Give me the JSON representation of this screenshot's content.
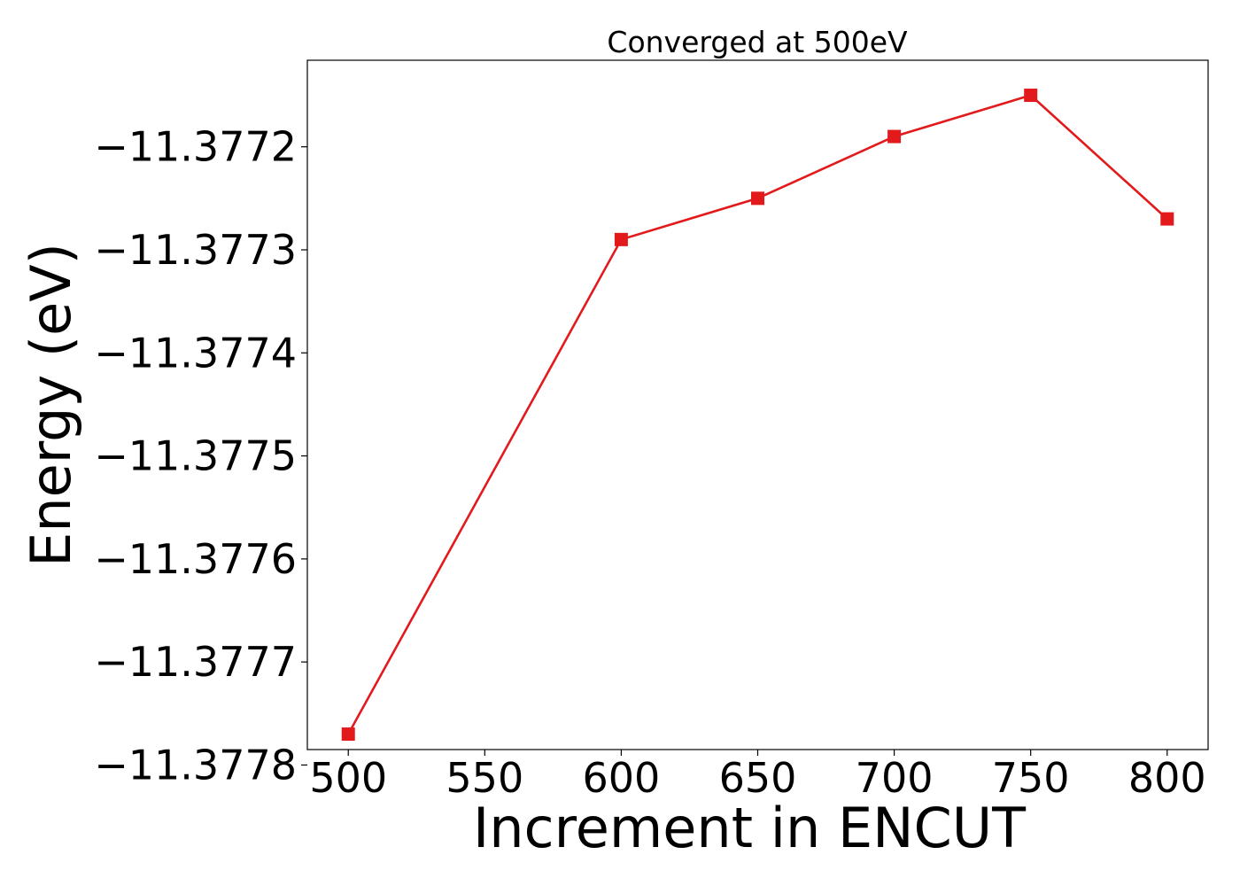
{
  "chart_data": {
    "type": "line",
    "title": "Converged at 500eV",
    "xlabel": "Increment in ENCUT",
    "ylabel": "Energy (eV)",
    "x": [
      500,
      600,
      650,
      700,
      750,
      800
    ],
    "series": [
      {
        "values": [
          -11.37777,
          -11.37729,
          -11.37725,
          -11.37719,
          -11.37715,
          -11.37727
        ],
        "color": "#e31a1c",
        "marker": "square"
      }
    ],
    "xticks": [
      500,
      550,
      600,
      650,
      700,
      750,
      800
    ],
    "xtick_labels": [
      "500",
      "550",
      "600",
      "650",
      "700",
      "750",
      "800"
    ],
    "yticks": [
      -11.3778,
      -11.3777,
      -11.3776,
      -11.3775,
      -11.3774,
      -11.3773,
      -11.3772
    ],
    "ytick_labels": [
      "−11.3778",
      "−11.3777",
      "−11.3776",
      "−11.3775",
      "−11.3774",
      "−11.3773",
      "−11.3772"
    ],
    "xlim": [
      485,
      815
    ],
    "ylim": [
      -11.377785,
      -11.377116
    ],
    "grid": false
  }
}
